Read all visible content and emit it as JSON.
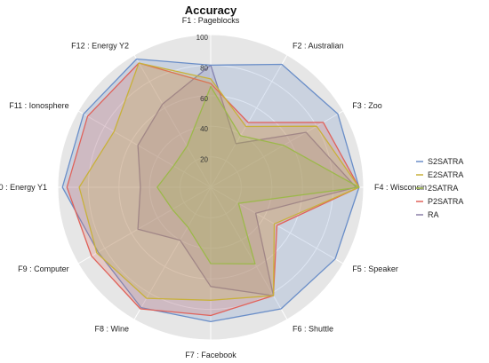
{
  "chart_data": {
    "type": "radar",
    "title": "Accuracy",
    "axes": [
      "F1 : Pageblocks",
      "F2 : Australian",
      "F3 : Zoo",
      "F4 : Wisconsin",
      "F5 : Speaker",
      "F6 : Shuttle",
      "F7 : Facebook",
      "F8 : Wine",
      "F9 : Computer",
      "F10 : Energy Y1",
      "F11 : Ionosphere",
      "F12 : Energy Y2"
    ],
    "ticks": [
      20,
      40,
      60,
      80,
      100
    ],
    "range": [
      0,
      100
    ],
    "legend_position": "right",
    "series": [
      {
        "name": "S2SATRA",
        "color": "#6a8ec8",
        "values": [
          80,
          93,
          96,
          97,
          94,
          92,
          88,
          91,
          85,
          97,
          96,
          97
        ]
      },
      {
        "name": "E2SATRA",
        "color": "#c8b13a",
        "values": [
          71,
          46,
          80,
          97,
          48,
          82,
          74,
          84,
          86,
          86,
          73,
          94
        ]
      },
      {
        "name": "2SATRA",
        "color": "#9cb84a",
        "values": [
          66,
          39,
          55,
          97,
          21,
          58,
          50,
          30,
          29,
          35,
          28,
          31
        ]
      },
      {
        "name": "P2SATRA",
        "color": "#e0625a",
        "values": [
          68,
          49,
          85,
          97,
          50,
          82,
          84,
          92,
          90,
          94,
          93,
          94
        ]
      },
      {
        "name": "RA",
        "color": "#8b7fa8",
        "values": [
          80,
          33,
          72,
          95,
          34,
          82,
          65,
          40,
          55,
          46,
          55,
          63
        ]
      }
    ]
  }
}
